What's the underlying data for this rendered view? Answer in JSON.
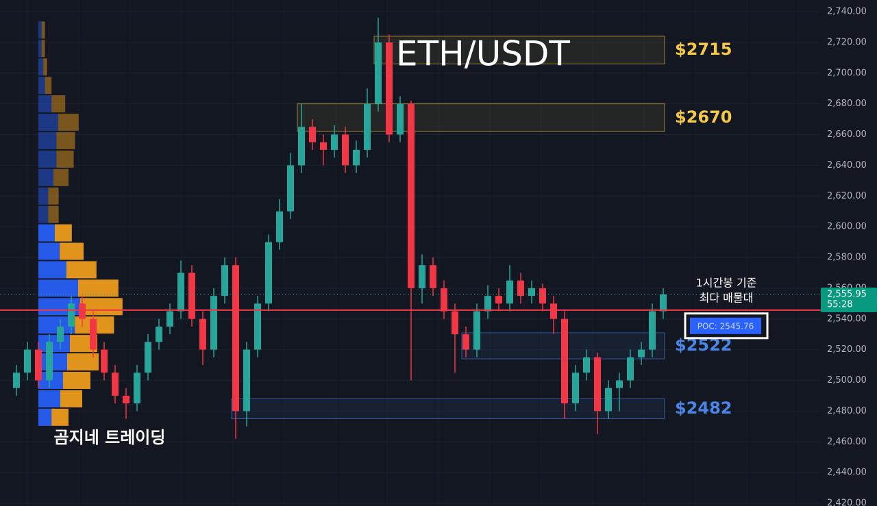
{
  "chart_data": {
    "type": "candlestick",
    "title": "ETH/USDT",
    "watermark": "곰지네 트레이딩",
    "annotation": [
      "1시간봉 기준",
      "최다 매물대"
    ],
    "colors": {
      "up": "#26a69a",
      "down": "#f23645",
      "buy": "#2962ff",
      "sell": "#f7a21b",
      "poc": "#f23645"
    },
    "ylim": [
      2420,
      2740
    ],
    "yticks": [
      {
        "value": 2420,
        "label": "2,420.00"
      },
      {
        "value": 2440,
        "label": "2,440.00"
      },
      {
        "value": 2460,
        "label": "2,460.00"
      },
      {
        "value": 2480,
        "label": "2,480.00"
      },
      {
        "value": 2500,
        "label": "2,500.00"
      },
      {
        "value": 2520,
        "label": "2,520.00"
      },
      {
        "value": 2540,
        "label": "2,540.00"
      },
      {
        "value": 2560,
        "label": "2,560.00"
      },
      {
        "value": 2580,
        "label": "2,580.00"
      },
      {
        "value": 2600,
        "label": "2,600.00"
      },
      {
        "value": 2620,
        "label": "2,620.00"
      },
      {
        "value": 2640,
        "label": "2,640.00"
      },
      {
        "value": 2660,
        "label": "2,660.00"
      },
      {
        "value": 2680,
        "label": "2,680.00"
      },
      {
        "value": 2700,
        "label": "2,700.00"
      },
      {
        "value": 2720,
        "label": "2,720.00"
      },
      {
        "value": 2740,
        "label": "2,740.00"
      }
    ],
    "grid": true,
    "current_price": {
      "value": 2555.95,
      "label": "2,555.95",
      "timer": "55:28"
    },
    "poc": {
      "value": 2545.76,
      "label": "POC: 2545.76"
    },
    "candles": {
      "open": [
        2495,
        2505,
        2520,
        2500,
        2525,
        2535,
        2550,
        2540,
        2520,
        2505,
        2490,
        2485,
        2505,
        2525,
        2535,
        2545,
        2570,
        2540,
        2520,
        2555,
        2575,
        2480,
        2520,
        2550,
        2590,
        2610,
        2640,
        2665,
        2655,
        2650,
        2660,
        2640,
        2650,
        2680,
        2720,
        2660,
        2680,
        2560,
        2575,
        2560,
        2545,
        2530,
        2520,
        2545,
        2555,
        2550,
        2565,
        2555,
        2560,
        2550,
        2540,
        2485,
        2505,
        2515,
        2480,
        2495,
        2500,
        2515,
        2520,
        2545
      ],
      "high": [
        2510,
        2525,
        2525,
        2530,
        2540,
        2555,
        2555,
        2545,
        2525,
        2510,
        2495,
        2510,
        2530,
        2540,
        2550,
        2578,
        2575,
        2545,
        2560,
        2580,
        2580,
        2525,
        2555,
        2595,
        2618,
        2648,
        2680,
        2670,
        2660,
        2666,
        2665,
        2656,
        2690,
        2736,
        2725,
        2685,
        2682,
        2582,
        2580,
        2565,
        2550,
        2535,
        2550,
        2562,
        2560,
        2575,
        2570,
        2565,
        2563,
        2555,
        2545,
        2510,
        2520,
        2518,
        2500,
        2505,
        2520,
        2525,
        2550,
        2560
      ],
      "low": [
        2490,
        2500,
        2495,
        2495,
        2520,
        2530,
        2535,
        2515,
        2500,
        2485,
        2475,
        2480,
        2500,
        2520,
        2530,
        2540,
        2535,
        2510,
        2515,
        2550,
        2462,
        2470,
        2515,
        2545,
        2585,
        2605,
        2635,
        2650,
        2640,
        2645,
        2635,
        2635,
        2645,
        2675,
        2655,
        2655,
        2500,
        2550,
        2555,
        2540,
        2505,
        2515,
        2515,
        2540,
        2545,
        2545,
        2550,
        2550,
        2545,
        2530,
        2475,
        2480,
        2500,
        2465,
        2475,
        2480,
        2495,
        2510,
        2515,
        2540
      ],
      "close": [
        2505,
        2520,
        2500,
        2525,
        2535,
        2550,
        2540,
        2520,
        2505,
        2490,
        2485,
        2505,
        2525,
        2535,
        2545,
        2570,
        2540,
        2520,
        2555,
        2575,
        2480,
        2520,
        2550,
        2590,
        2610,
        2640,
        2665,
        2655,
        2650,
        2660,
        2640,
        2650,
        2680,
        2720,
        2660,
        2680,
        2560,
        2575,
        2560,
        2545,
        2530,
        2520,
        2545,
        2555,
        2550,
        2565,
        2555,
        2560,
        2550,
        2540,
        2485,
        2505,
        2515,
        2480,
        2495,
        2500,
        2515,
        2520,
        2545,
        2556
      ]
    },
    "volume_profile": {
      "prices": [
        2728,
        2716,
        2704,
        2692,
        2680,
        2668,
        2656,
        2644,
        2632,
        2620,
        2608,
        2596,
        2584,
        2572,
        2560,
        2548,
        2536,
        2524,
        2512,
        2500,
        2488,
        2476
      ],
      "buy": [
        12,
        12,
        18,
        24,
        48,
        72,
        66,
        66,
        55,
        36,
        36,
        60,
        78,
        102,
        145,
        152,
        133,
        115,
        105,
        90,
        80,
        48
      ],
      "sell": [
        12,
        12,
        14,
        24,
        50,
        75,
        68,
        63,
        55,
        38,
        38,
        62,
        87,
        110,
        147,
        155,
        143,
        100,
        115,
        100,
        80,
        62
      ]
    },
    "zones": [
      {
        "label": "$2715",
        "low": 2706,
        "high": 2724,
        "from": 33,
        "color": "#f7c948"
      },
      {
        "label": "$2670",
        "low": 2662,
        "high": 2680,
        "from": 26,
        "color": "#f7c948"
      },
      {
        "label": "$2522",
        "low": 2514,
        "high": 2531,
        "from": 41,
        "color": "#4a86e8"
      },
      {
        "label": "$2482",
        "low": 2475,
        "high": 2488,
        "from": 20,
        "color": "#4a86e8"
      }
    ]
  }
}
